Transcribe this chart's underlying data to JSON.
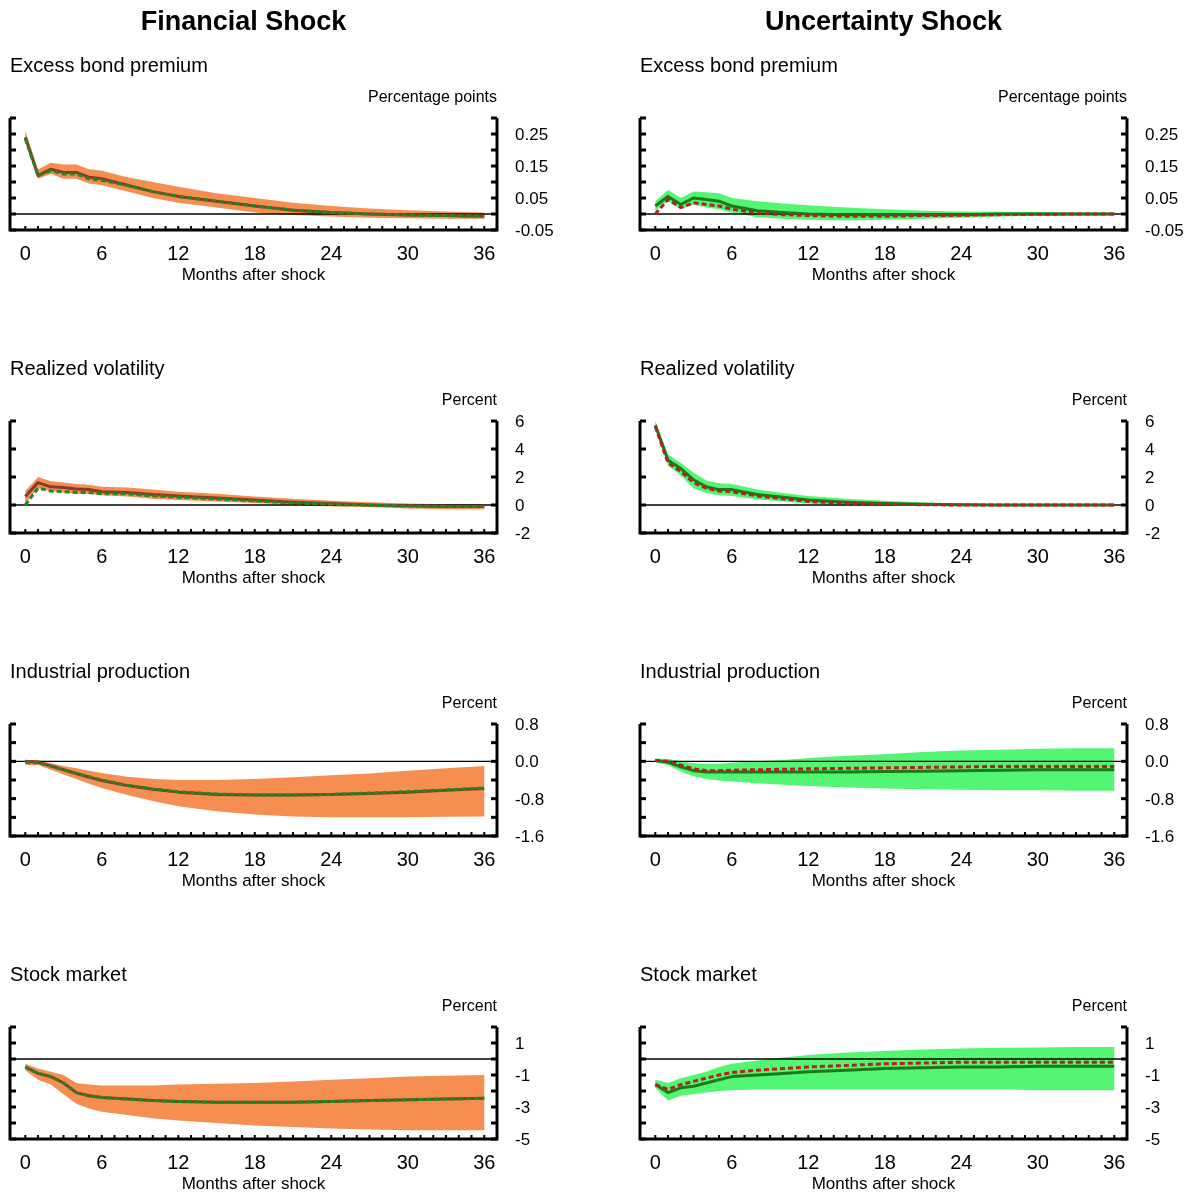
{
  "chart_data": [
    {
      "type": "line",
      "title": "Excess bond premium",
      "ylabel": "Percentage points",
      "xlabel": "Months after shock",
      "annotations": [
        "Financial Shock"
      ],
      "x": [
        0,
        1,
        2,
        3,
        4,
        5,
        6,
        8,
        10,
        12,
        15,
        18,
        21,
        24,
        27,
        30,
        33,
        36
      ],
      "xlim": [
        -1.2,
        37
      ],
      "xticks": [
        0,
        {
          "value": 1,
          "label": null
        },
        {
          "value": 2,
          "label": null
        },
        {
          "value": 3,
          "label": null
        },
        {
          "value": 4,
          "label": null
        },
        {
          "value": 5,
          "label": null
        },
        6,
        {
          "value": 7,
          "label": null
        },
        {
          "value": 8,
          "label": null
        },
        {
          "value": 9,
          "label": null
        },
        {
          "value": 10,
          "label": null
        },
        {
          "value": 11,
          "label": null
        },
        12,
        {
          "value": 13,
          "label": null
        },
        {
          "value": 14,
          "label": null
        },
        {
          "value": 15,
          "label": null
        },
        {
          "value": 16,
          "label": null
        },
        {
          "value": 17,
          "label": null
        },
        18,
        {
          "value": 19,
          "label": null
        },
        {
          "value": 20,
          "label": null
        },
        {
          "value": 21,
          "label": null
        },
        {
          "value": 22,
          "label": null
        },
        {
          "value": 23,
          "label": null
        },
        24,
        {
          "value": 25,
          "label": null
        },
        {
          "value": 26,
          "label": null
        },
        {
          "value": 27,
          "label": null
        },
        {
          "value": 28,
          "label": null
        },
        {
          "value": 29,
          "label": null
        },
        30,
        {
          "value": 31,
          "label": null
        },
        {
          "value": 32,
          "label": null
        },
        {
          "value": 33,
          "label": null
        },
        {
          "value": 34,
          "label": null
        },
        {
          "value": 35,
          "label": null
        },
        36
      ],
      "ylim": [
        -0.05,
        0.3
      ],
      "yticks": [
        -0.05,
        {
          "value": 0,
          "label": null
        },
        0.05,
        {
          "value": 0.1,
          "label": null
        },
        0.15,
        {
          "value": 0.2,
          "label": null
        },
        0.25,
        {
          "value": 0.3,
          "label": null
        }
      ],
      "ref_lines": [
        {
          "axis": "y",
          "value": 0,
          "color": "#000000"
        }
      ],
      "series": [
        {
          "color": "#8b3a2a",
          "line_style": "solid",
          "values": [
            0.24,
            0.12,
            0.14,
            0.13,
            0.13,
            0.115,
            0.11,
            0.09,
            0.07,
            0.055,
            0.04,
            0.025,
            0.012,
            0.005,
            0,
            -0.003,
            -0.005,
            -0.007
          ],
          "lower": [
            0.23,
            0.11,
            0.125,
            0.11,
            0.11,
            0.095,
            0.09,
            0.07,
            0.05,
            0.035,
            0.02,
            0.005,
            -0.003,
            -0.008,
            -0.012,
            -0.013,
            -0.015,
            -0.015
          ],
          "upper": [
            0.26,
            0.14,
            0.16,
            0.155,
            0.155,
            0.14,
            0.135,
            0.115,
            0.1,
            0.085,
            0.065,
            0.05,
            0.035,
            0.025,
            0.017,
            0.012,
            0.008,
            0.005
          ]
        },
        {
          "color": "#1f8a1f",
          "line_style": "dashed",
          "values": [
            0.235,
            0.12,
            0.135,
            0.125,
            0.125,
            0.11,
            0.105,
            0.09,
            0.07,
            0.055,
            0.04,
            0.025,
            0.012,
            0.005,
            0,
            -0.003,
            -0.005,
            -0.007
          ]
        }
      ]
    },
    {
      "type": "line",
      "title": "Excess bond premium",
      "ylabel": "Percentage points",
      "xlabel": "Months after shock",
      "annotations": [
        "Uncertainty Shock"
      ],
      "x": [
        0,
        1,
        2,
        3,
        4,
        5,
        6,
        8,
        10,
        12,
        15,
        18,
        21,
        24,
        27,
        30,
        33,
        36
      ],
      "xlim": [
        -1.2,
        37
      ],
      "xticks": [
        0,
        {
          "value": 1,
          "label": null
        },
        {
          "value": 2,
          "label": null
        },
        {
          "value": 3,
          "label": null
        },
        {
          "value": 4,
          "label": null
        },
        {
          "value": 5,
          "label": null
        },
        6,
        {
          "value": 7,
          "label": null
        },
        {
          "value": 8,
          "label": null
        },
        {
          "value": 9,
          "label": null
        },
        {
          "value": 10,
          "label": null
        },
        {
          "value": 11,
          "label": null
        },
        12,
        {
          "value": 13,
          "label": null
        },
        {
          "value": 14,
          "label": null
        },
        {
          "value": 15,
          "label": null
        },
        {
          "value": 16,
          "label": null
        },
        {
          "value": 17,
          "label": null
        },
        18,
        {
          "value": 19,
          "label": null
        },
        {
          "value": 20,
          "label": null
        },
        {
          "value": 21,
          "label": null
        },
        {
          "value": 22,
          "label": null
        },
        {
          "value": 23,
          "label": null
        },
        24,
        {
          "value": 25,
          "label": null
        },
        {
          "value": 26,
          "label": null
        },
        {
          "value": 27,
          "label": null
        },
        {
          "value": 28,
          "label": null
        },
        {
          "value": 29,
          "label": null
        },
        30,
        {
          "value": 31,
          "label": null
        },
        {
          "value": 32,
          "label": null
        },
        {
          "value": 33,
          "label": null
        },
        {
          "value": 34,
          "label": null
        },
        {
          "value": 35,
          "label": null
        },
        36
      ],
      "ylim": [
        -0.05,
        0.3
      ],
      "yticks": [
        -0.05,
        {
          "value": 0,
          "label": null
        },
        0.05,
        {
          "value": 0.1,
          "label": null
        },
        0.15,
        {
          "value": 0.2,
          "label": null
        },
        0.25,
        {
          "value": 0.3,
          "label": null
        }
      ],
      "ref_lines": [
        {
          "axis": "y",
          "value": 0,
          "color": "#000000"
        }
      ],
      "series": [
        {
          "color": "#1a7a1a",
          "line_style": "solid",
          "values": [
            0.025,
            0.055,
            0.03,
            0.05,
            0.045,
            0.04,
            0.025,
            0.01,
            0.005,
            0,
            -0.002,
            -0.002,
            -0.002,
            -0.002,
            0,
            0,
            0,
            0
          ],
          "lower": [
            0.01,
            0.04,
            0.015,
            0.03,
            0.02,
            0.015,
            0.005,
            -0.01,
            -0.015,
            -0.018,
            -0.02,
            -0.018,
            -0.015,
            -0.012,
            -0.008,
            -0.006,
            -0.005,
            -0.004
          ],
          "upper": [
            0.04,
            0.075,
            0.05,
            0.07,
            0.068,
            0.065,
            0.05,
            0.04,
            0.033,
            0.027,
            0.02,
            0.015,
            0.01,
            0.008,
            0.007,
            0.006,
            0.005,
            0.005
          ]
        },
        {
          "color": "#b22222",
          "line_style": "dashed",
          "values": [
            0,
            0.045,
            0.02,
            0.035,
            0.03,
            0.025,
            0.015,
            0.003,
            -0.002,
            -0.005,
            -0.007,
            -0.007,
            -0.005,
            -0.004,
            -0.002,
            -0.001,
            0,
            0
          ]
        }
      ]
    },
    {
      "type": "line",
      "title": "Realized volatility",
      "ylabel": "Percent",
      "xlabel": "Months after shock",
      "x": [
        0,
        1,
        2,
        3,
        4,
        5,
        6,
        8,
        10,
        12,
        15,
        18,
        21,
        24,
        27,
        30,
        33,
        36
      ],
      "xlim": [
        -1.2,
        37
      ],
      "xticks": [
        0,
        {
          "value": 1,
          "label": null
        },
        {
          "value": 2,
          "label": null
        },
        {
          "value": 3,
          "label": null
        },
        {
          "value": 4,
          "label": null
        },
        {
          "value": 5,
          "label": null
        },
        6,
        {
          "value": 7,
          "label": null
        },
        {
          "value": 8,
          "label": null
        },
        {
          "value": 9,
          "label": null
        },
        {
          "value": 10,
          "label": null
        },
        {
          "value": 11,
          "label": null
        },
        12,
        {
          "value": 13,
          "label": null
        },
        {
          "value": 14,
          "label": null
        },
        {
          "value": 15,
          "label": null
        },
        {
          "value": 16,
          "label": null
        },
        {
          "value": 17,
          "label": null
        },
        18,
        {
          "value": 19,
          "label": null
        },
        {
          "value": 20,
          "label": null
        },
        {
          "value": 21,
          "label": null
        },
        {
          "value": 22,
          "label": null
        },
        {
          "value": 23,
          "label": null
        },
        24,
        {
          "value": 25,
          "label": null
        },
        {
          "value": 26,
          "label": null
        },
        {
          "value": 27,
          "label": null
        },
        {
          "value": 28,
          "label": null
        },
        {
          "value": 29,
          "label": null
        },
        30,
        {
          "value": 31,
          "label": null
        },
        {
          "value": 32,
          "label": null
        },
        {
          "value": 33,
          "label": null
        },
        {
          "value": 34,
          "label": null
        },
        {
          "value": 35,
          "label": null
        },
        36
      ],
      "ylim": [
        -2,
        6
      ],
      "yticks": [
        -2,
        0,
        2,
        4,
        6
      ],
      "ref_lines": [
        {
          "axis": "y",
          "value": 0,
          "color": "#000000"
        }
      ],
      "series": [
        {
          "color": "#8b3a2a",
          "line_style": "solid",
          "values": [
            0.6,
            1.6,
            1.3,
            1.25,
            1.15,
            1.1,
            0.95,
            0.9,
            0.75,
            0.65,
            0.5,
            0.35,
            0.2,
            0.1,
            0,
            -0.05,
            -0.1,
            -0.1
          ],
          "lower": [
            0.1,
            1.2,
            1.0,
            0.9,
            0.8,
            0.8,
            0.7,
            0.6,
            0.45,
            0.35,
            0.25,
            0.15,
            0,
            -0.1,
            -0.15,
            -0.25,
            -0.3,
            -0.3
          ],
          "upper": [
            1.0,
            2.0,
            1.7,
            1.6,
            1.5,
            1.45,
            1.3,
            1.25,
            1.1,
            0.95,
            0.8,
            0.6,
            0.45,
            0.3,
            0.2,
            0.1,
            0.05,
            0.05
          ]
        },
        {
          "color": "#1f8a1f",
          "line_style": "dashed",
          "values": [
            0,
            1.2,
            1.0,
            0.95,
            0.9,
            0.9,
            0.8,
            0.8,
            0.65,
            0.55,
            0.42,
            0.3,
            0.15,
            0.05,
            -0.02,
            -0.08,
            -0.1,
            -0.1
          ]
        }
      ]
    },
    {
      "type": "line",
      "title": "Realized volatility",
      "ylabel": "Percent",
      "xlabel": "Months after shock",
      "x": [
        0,
        1,
        2,
        3,
        4,
        5,
        6,
        8,
        10,
        12,
        15,
        18,
        21,
        24,
        27,
        30,
        33,
        36
      ],
      "xlim": [
        -1.2,
        37
      ],
      "xticks": [
        0,
        {
          "value": 1,
          "label": null
        },
        {
          "value": 2,
          "label": null
        },
        {
          "value": 3,
          "label": null
        },
        {
          "value": 4,
          "label": null
        },
        {
          "value": 5,
          "label": null
        },
        6,
        {
          "value": 7,
          "label": null
        },
        {
          "value": 8,
          "label": null
        },
        {
          "value": 9,
          "label": null
        },
        {
          "value": 10,
          "label": null
        },
        {
          "value": 11,
          "label": null
        },
        12,
        {
          "value": 13,
          "label": null
        },
        {
          "value": 14,
          "label": null
        },
        {
          "value": 15,
          "label": null
        },
        {
          "value": 16,
          "label": null
        },
        {
          "value": 17,
          "label": null
        },
        18,
        {
          "value": 19,
          "label": null
        },
        {
          "value": 20,
          "label": null
        },
        {
          "value": 21,
          "label": null
        },
        {
          "value": 22,
          "label": null
        },
        {
          "value": 23,
          "label": null
        },
        24,
        {
          "value": 25,
          "label": null
        },
        {
          "value": 26,
          "label": null
        },
        {
          "value": 27,
          "label": null
        },
        {
          "value": 28,
          "label": null
        },
        {
          "value": 29,
          "label": null
        },
        30,
        {
          "value": 31,
          "label": null
        },
        {
          "value": 32,
          "label": null
        },
        {
          "value": 33,
          "label": null
        },
        {
          "value": 34,
          "label": null
        },
        {
          "value": 35,
          "label": null
        },
        36
      ],
      "ylim": [
        -2,
        6
      ],
      "yticks": [
        -2,
        0,
        2,
        4,
        6
      ],
      "ref_lines": [
        {
          "axis": "y",
          "value": 0,
          "color": "#000000"
        }
      ],
      "series": [
        {
          "color": "#1a7a1a",
          "line_style": "solid",
          "values": [
            5.7,
            3.2,
            2.6,
            1.8,
            1.3,
            1.1,
            1.1,
            0.75,
            0.55,
            0.35,
            0.2,
            0.1,
            0.05,
            0.02,
            0,
            0,
            0,
            0
          ],
          "lower": [
            5.5,
            2.8,
            2.1,
            1.2,
            0.85,
            0.7,
            0.65,
            0.4,
            0.25,
            0.1,
            0,
            -0.05,
            -0.05,
            -0.05,
            -0.03,
            -0.02,
            -0.02,
            -0.02
          ],
          "upper": [
            6.0,
            3.6,
            3.0,
            2.3,
            1.75,
            1.55,
            1.5,
            1.1,
            0.85,
            0.65,
            0.45,
            0.3,
            0.18,
            0.1,
            0.06,
            0.04,
            0.03,
            0.03
          ]
        },
        {
          "color": "#b22222",
          "line_style": "dashed",
          "values": [
            5.6,
            3.0,
            2.4,
            1.6,
            1.2,
            1.0,
            0.95,
            0.65,
            0.45,
            0.25,
            0.12,
            0.05,
            0.02,
            0,
            0,
            0,
            0,
            0
          ]
        }
      ]
    },
    {
      "type": "line",
      "title": "Industrial production",
      "ylabel": "Percent",
      "xlabel": "Months after shock",
      "x": [
        0,
        1,
        2,
        3,
        4,
        5,
        6,
        8,
        10,
        12,
        15,
        18,
        21,
        24,
        27,
        30,
        33,
        36
      ],
      "xlim": [
        -1.2,
        37
      ],
      "xticks": [
        0,
        {
          "value": 1,
          "label": null
        },
        {
          "value": 2,
          "label": null
        },
        {
          "value": 3,
          "label": null
        },
        {
          "value": 4,
          "label": null
        },
        {
          "value": 5,
          "label": null
        },
        6,
        {
          "value": 7,
          "label": null
        },
        {
          "value": 8,
          "label": null
        },
        {
          "value": 9,
          "label": null
        },
        {
          "value": 10,
          "label": null
        },
        {
          "value": 11,
          "label": null
        },
        12,
        {
          "value": 13,
          "label": null
        },
        {
          "value": 14,
          "label": null
        },
        {
          "value": 15,
          "label": null
        },
        {
          "value": 16,
          "label": null
        },
        {
          "value": 17,
          "label": null
        },
        18,
        {
          "value": 19,
          "label": null
        },
        {
          "value": 20,
          "label": null
        },
        {
          "value": 21,
          "label": null
        },
        {
          "value": 22,
          "label": null
        },
        {
          "value": 23,
          "label": null
        },
        24,
        {
          "value": 25,
          "label": null
        },
        {
          "value": 26,
          "label": null
        },
        {
          "value": 27,
          "label": null
        },
        {
          "value": 28,
          "label": null
        },
        {
          "value": 29,
          "label": null
        },
        30,
        {
          "value": 31,
          "label": null
        },
        {
          "value": 32,
          "label": null
        },
        {
          "value": 33,
          "label": null
        },
        {
          "value": 34,
          "label": null
        },
        {
          "value": 35,
          "label": null
        },
        36
      ],
      "ylim": [
        -1.6,
        0.8
      ],
      "yticks": [
        {
          "value": -1.6,
          "label": "-1.6"
        },
        {
          "value": -1.2,
          "label": null
        },
        {
          "value": -0.8,
          "label": "-0.8"
        },
        {
          "value": -0.4,
          "label": null
        },
        {
          "value": 0,
          "label": "0.0"
        },
        {
          "value": 0.4,
          "label": null
        },
        0.8
      ],
      "ref_lines": [
        {
          "axis": "y",
          "value": 0,
          "color": "#000000"
        }
      ],
      "series": [
        {
          "color": "#8b3a2a",
          "line_style": "solid",
          "values": [
            0,
            -0.02,
            -0.1,
            -0.18,
            -0.26,
            -0.34,
            -0.41,
            -0.52,
            -0.6,
            -0.66,
            -0.71,
            -0.72,
            -0.72,
            -0.71,
            -0.69,
            -0.66,
            -0.62,
            -0.58
          ],
          "lower": [
            -0.08,
            -0.08,
            -0.18,
            -0.28,
            -0.38,
            -0.48,
            -0.57,
            -0.72,
            -0.85,
            -0.96,
            -1.07,
            -1.14,
            -1.18,
            -1.2,
            -1.2,
            -1.2,
            -1.19,
            -1.18
          ],
          "upper": [
            0.03,
            0.03,
            -0.04,
            -0.1,
            -0.15,
            -0.2,
            -0.25,
            -0.33,
            -0.38,
            -0.4,
            -0.4,
            -0.38,
            -0.34,
            -0.3,
            -0.26,
            -0.2,
            -0.15,
            -0.1
          ]
        },
        {
          "color": "#1f8a1f",
          "line_style": "dashed",
          "values": [
            -0.02,
            -0.03,
            -0.1,
            -0.18,
            -0.26,
            -0.33,
            -0.4,
            -0.51,
            -0.59,
            -0.65,
            -0.7,
            -0.72,
            -0.72,
            -0.71,
            -0.68,
            -0.65,
            -0.61,
            -0.57
          ]
        }
      ]
    },
    {
      "type": "line",
      "title": "Industrial production",
      "ylabel": "Percent",
      "xlabel": "Months after shock",
      "x": [
        0,
        1,
        2,
        3,
        4,
        5,
        6,
        8,
        10,
        12,
        15,
        18,
        21,
        24,
        27,
        30,
        33,
        36
      ],
      "xlim": [
        -1.2,
        37
      ],
      "xticks": [
        0,
        {
          "value": 1,
          "label": null
        },
        {
          "value": 2,
          "label": null
        },
        {
          "value": 3,
          "label": null
        },
        {
          "value": 4,
          "label": null
        },
        {
          "value": 5,
          "label": null
        },
        6,
        {
          "value": 7,
          "label": null
        },
        {
          "value": 8,
          "label": null
        },
        {
          "value": 9,
          "label": null
        },
        {
          "value": 10,
          "label": null
        },
        {
          "value": 11,
          "label": null
        },
        12,
        {
          "value": 13,
          "label": null
        },
        {
          "value": 14,
          "label": null
        },
        {
          "value": 15,
          "label": null
        },
        {
          "value": 16,
          "label": null
        },
        {
          "value": 17,
          "label": null
        },
        18,
        {
          "value": 19,
          "label": null
        },
        {
          "value": 20,
          "label": null
        },
        {
          "value": 21,
          "label": null
        },
        {
          "value": 22,
          "label": null
        },
        {
          "value": 23,
          "label": null
        },
        24,
        {
          "value": 25,
          "label": null
        },
        {
          "value": 26,
          "label": null
        },
        {
          "value": 27,
          "label": null
        },
        {
          "value": 28,
          "label": null
        },
        {
          "value": 29,
          "label": null
        },
        30,
        {
          "value": 31,
          "label": null
        },
        {
          "value": 32,
          "label": null
        },
        {
          "value": 33,
          "label": null
        },
        {
          "value": 34,
          "label": null
        },
        {
          "value": 35,
          "label": null
        },
        36
      ],
      "ylim": [
        -1.6,
        0.8
      ],
      "yticks": [
        {
          "value": -1.6,
          "label": "-1.6"
        },
        {
          "value": -1.2,
          "label": null
        },
        {
          "value": -0.8,
          "label": "-0.8"
        },
        {
          "value": -0.4,
          "label": null
        },
        {
          "value": 0,
          "label": "0.0"
        },
        {
          "value": 0.4,
          "label": null
        },
        0.8
      ],
      "ref_lines": [
        {
          "axis": "y",
          "value": 0,
          "color": "#000000"
        }
      ],
      "series": [
        {
          "color": "#1a7a1a",
          "line_style": "solid",
          "values": [
            0.02,
            -0.02,
            -0.12,
            -0.2,
            -0.23,
            -0.23,
            -0.23,
            -0.23,
            -0.23,
            -0.23,
            -0.23,
            -0.22,
            -0.21,
            -0.2,
            -0.19,
            -0.18,
            -0.18,
            -0.18
          ],
          "lower": [
            -0.02,
            -0.08,
            -0.22,
            -0.32,
            -0.38,
            -0.41,
            -0.43,
            -0.47,
            -0.5,
            -0.53,
            -0.56,
            -0.58,
            -0.6,
            -0.61,
            -0.62,
            -0.62,
            -0.63,
            -0.63
          ],
          "upper": [
            0.06,
            0.05,
            0.0,
            -0.04,
            -0.05,
            -0.05,
            -0.03,
            0.0,
            0.03,
            0.07,
            0.12,
            0.15,
            0.2,
            0.23,
            0.25,
            0.27,
            0.28,
            0.28
          ]
        },
        {
          "color": "#b22222",
          "line_style": "dashed",
          "values": [
            0.02,
            0,
            -0.08,
            -0.16,
            -0.2,
            -0.2,
            -0.19,
            -0.18,
            -0.17,
            -0.16,
            -0.15,
            -0.14,
            -0.13,
            -0.12,
            -0.11,
            -0.11,
            -0.11,
            -0.11
          ]
        }
      ]
    },
    {
      "type": "line",
      "title": "Stock market",
      "ylabel": "Percent",
      "xlabel": "Months after shock",
      "x": [
        0,
        1,
        2,
        3,
        4,
        5,
        6,
        8,
        10,
        12,
        15,
        18,
        21,
        24,
        27,
        30,
        33,
        36
      ],
      "xlim": [
        -1.2,
        37
      ],
      "xticks": [
        0,
        {
          "value": 1,
          "label": null
        },
        {
          "value": 2,
          "label": null
        },
        {
          "value": 3,
          "label": null
        },
        {
          "value": 4,
          "label": null
        },
        {
          "value": 5,
          "label": null
        },
        6,
        {
          "value": 7,
          "label": null
        },
        {
          "value": 8,
          "label": null
        },
        {
          "value": 9,
          "label": null
        },
        {
          "value": 10,
          "label": null
        },
        {
          "value": 11,
          "label": null
        },
        12,
        {
          "value": 13,
          "label": null
        },
        {
          "value": 14,
          "label": null
        },
        {
          "value": 15,
          "label": null
        },
        {
          "value": 16,
          "label": null
        },
        {
          "value": 17,
          "label": null
        },
        18,
        {
          "value": 19,
          "label": null
        },
        {
          "value": 20,
          "label": null
        },
        {
          "value": 21,
          "label": null
        },
        {
          "value": 22,
          "label": null
        },
        {
          "value": 23,
          "label": null
        },
        24,
        {
          "value": 25,
          "label": null
        },
        {
          "value": 26,
          "label": null
        },
        {
          "value": 27,
          "label": null
        },
        {
          "value": 28,
          "label": null
        },
        {
          "value": 29,
          "label": null
        },
        30,
        {
          "value": 31,
          "label": null
        },
        {
          "value": 32,
          "label": null
        },
        {
          "value": 33,
          "label": null
        },
        {
          "value": 34,
          "label": null
        },
        {
          "value": 35,
          "label": null
        },
        36
      ],
      "ylim": [
        -5,
        2
      ],
      "yticks": [
        -5,
        {
          "value": -4,
          "label": null
        },
        -3,
        {
          "value": -2,
          "label": null
        },
        -1,
        {
          "value": 0,
          "label": null
        },
        1,
        {
          "value": 2,
          "label": null
        }
      ],
      "ref_lines": [
        {
          "axis": "y",
          "value": 0,
          "color": "#000000"
        }
      ],
      "series": [
        {
          "color": "#8b3a2a",
          "line_style": "solid",
          "values": [
            -0.5,
            -0.9,
            -1.1,
            -1.5,
            -2.1,
            -2.3,
            -2.4,
            -2.5,
            -2.6,
            -2.65,
            -2.7,
            -2.7,
            -2.7,
            -2.65,
            -2.6,
            -2.55,
            -2.5,
            -2.45
          ],
          "lower": [
            -0.7,
            -1.3,
            -1.6,
            -2.2,
            -2.8,
            -3.1,
            -3.3,
            -3.5,
            -3.7,
            -3.85,
            -4.0,
            -4.15,
            -4.25,
            -4.35,
            -4.4,
            -4.45,
            -4.45,
            -4.45
          ],
          "upper": [
            -0.3,
            -0.6,
            -0.8,
            -1.0,
            -1.5,
            -1.6,
            -1.65,
            -1.65,
            -1.65,
            -1.6,
            -1.55,
            -1.5,
            -1.4,
            -1.3,
            -1.2,
            -1.1,
            -1.05,
            -1.0
          ]
        },
        {
          "color": "#1f8a1f",
          "line_style": "dashed",
          "values": [
            -0.5,
            -0.9,
            -1.1,
            -1.5,
            -2.1,
            -2.3,
            -2.4,
            -2.5,
            -2.6,
            -2.65,
            -2.7,
            -2.7,
            -2.7,
            -2.65,
            -2.6,
            -2.55,
            -2.5,
            -2.45
          ]
        }
      ]
    },
    {
      "type": "line",
      "title": "Stock market",
      "ylabel": "Percent",
      "xlabel": "Months after shock",
      "x": [
        0,
        1,
        2,
        3,
        4,
        5,
        6,
        8,
        10,
        12,
        15,
        18,
        21,
        24,
        27,
        30,
        33,
        36
      ],
      "xlim": [
        -1.2,
        37
      ],
      "xticks": [
        0,
        {
          "value": 1,
          "label": null
        },
        {
          "value": 2,
          "label": null
        },
        {
          "value": 3,
          "label": null
        },
        {
          "value": 4,
          "label": null
        },
        {
          "value": 5,
          "label": null
        },
        6,
        {
          "value": 7,
          "label": null
        },
        {
          "value": 8,
          "label": null
        },
        {
          "value": 9,
          "label": null
        },
        {
          "value": 10,
          "label": null
        },
        {
          "value": 11,
          "label": null
        },
        12,
        {
          "value": 13,
          "label": null
        },
        {
          "value": 14,
          "label": null
        },
        {
          "value": 15,
          "label": null
        },
        {
          "value": 16,
          "label": null
        },
        {
          "value": 17,
          "label": null
        },
        18,
        {
          "value": 19,
          "label": null
        },
        {
          "value": 20,
          "label": null
        },
        {
          "value": 21,
          "label": null
        },
        {
          "value": 22,
          "label": null
        },
        {
          "value": 23,
          "label": null
        },
        24,
        {
          "value": 25,
          "label": null
        },
        {
          "value": 26,
          "label": null
        },
        {
          "value": 27,
          "label": null
        },
        {
          "value": 28,
          "label": null
        },
        {
          "value": 29,
          "label": null
        },
        30,
        {
          "value": 31,
          "label": null
        },
        {
          "value": 32,
          "label": null
        },
        {
          "value": 33,
          "label": null
        },
        {
          "value": 34,
          "label": null
        },
        {
          "value": 35,
          "label": null
        },
        36
      ],
      "ylim": [
        -5,
        2
      ],
      "yticks": [
        -5,
        {
          "value": -4,
          "label": null
        },
        -3,
        {
          "value": -2,
          "label": null
        },
        -1,
        {
          "value": 0,
          "label": null
        },
        1,
        {
          "value": 2,
          "label": null
        }
      ],
      "ref_lines": [
        {
          "axis": "y",
          "value": 0,
          "color": "#000000"
        }
      ],
      "series": [
        {
          "color": "#1a7a1a",
          "line_style": "solid",
          "values": [
            -1.6,
            -2.1,
            -1.8,
            -1.7,
            -1.5,
            -1.3,
            -1.1,
            -1.0,
            -0.9,
            -0.8,
            -0.7,
            -0.6,
            -0.55,
            -0.5,
            -0.5,
            -0.45,
            -0.45,
            -0.45
          ],
          "lower": [
            -1.8,
            -2.6,
            -2.3,
            -2.2,
            -2.1,
            -2.0,
            -1.95,
            -1.9,
            -1.9,
            -1.9,
            -1.9,
            -1.9,
            -1.9,
            -1.9,
            -1.9,
            -1.95,
            -1.95,
            -1.95
          ],
          "upper": [
            -1.3,
            -1.5,
            -1.2,
            -1.0,
            -0.8,
            -0.5,
            -0.3,
            -0.1,
            0.1,
            0.25,
            0.4,
            0.5,
            0.6,
            0.65,
            0.7,
            0.72,
            0.75,
            0.75
          ]
        },
        {
          "color": "#b22222",
          "line_style": "dashed",
          "values": [
            -1.6,
            -1.9,
            -1.6,
            -1.4,
            -1.2,
            -1.0,
            -0.85,
            -0.7,
            -0.6,
            -0.5,
            -0.4,
            -0.3,
            -0.25,
            -0.2,
            -0.2,
            -0.2,
            -0.2,
            -0.2
          ]
        }
      ]
    }
  ]
}
